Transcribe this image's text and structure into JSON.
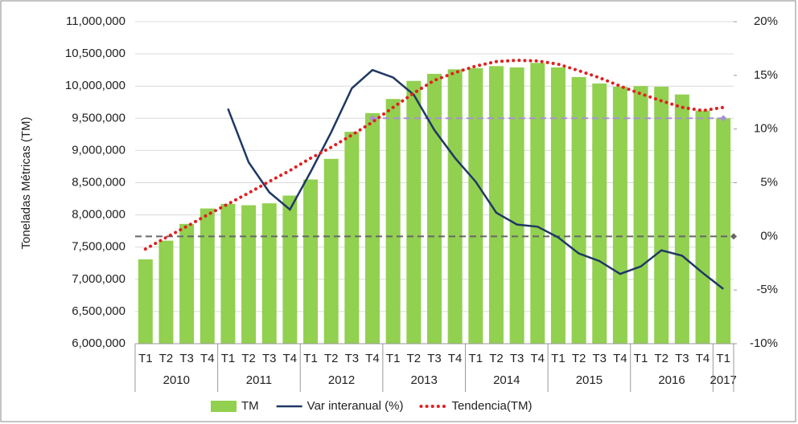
{
  "chart_data": {
    "type": "bar",
    "y_axis_label": "Toneladas Métricas (TM)",
    "categories": [
      "T1",
      "T2",
      "T3",
      "T4",
      "T1",
      "T2",
      "T3",
      "T4",
      "T1",
      "T2",
      "T3",
      "T4",
      "T1",
      "T2",
      "T3",
      "T4",
      "T1",
      "T2",
      "T3",
      "T4",
      "T1",
      "T2",
      "T3",
      "T4",
      "T1",
      "T2",
      "T3",
      "T4",
      "T1"
    ],
    "groups": [
      {
        "label": "2010",
        "span": 4
      },
      {
        "label": "2011",
        "span": 4
      },
      {
        "label": "2012",
        "span": 4
      },
      {
        "label": "2013",
        "span": 4
      },
      {
        "label": "2014",
        "span": 4
      },
      {
        "label": "2015",
        "span": 4
      },
      {
        "label": "2016",
        "span": 4
      },
      {
        "label": "2017",
        "span": 1
      }
    ],
    "series": [
      {
        "name": "TM",
        "type": "bar",
        "color": "#92d050",
        "values": [
          7310000,
          7600000,
          7860000,
          8100000,
          8170000,
          8150000,
          8180000,
          8300000,
          8550000,
          8870000,
          9290000,
          9580000,
          9800000,
          10080000,
          10190000,
          10260000,
          10280000,
          10310000,
          10290000,
          10360000,
          10290000,
          10140000,
          10040000,
          9990000,
          10000000,
          9990000,
          9870000,
          9620000,
          9500000
        ]
      },
      {
        "name": "Var interanual (%)",
        "type": "line",
        "axis": "y2",
        "color": "#1f3864",
        "values": [
          null,
          null,
          null,
          null,
          11.9,
          6.9,
          4.1,
          2.5,
          6.0,
          9.7,
          13.8,
          15.5,
          14.8,
          13.2,
          9.9,
          7.3,
          5.1,
          2.2,
          1.1,
          0.9,
          -0.1,
          -1.6,
          -2.3,
          -3.5,
          -2.8,
          -1.3,
          -1.8,
          -3.4,
          -4.9
        ]
      },
      {
        "name": "Tendencia(TM)",
        "type": "dotted",
        "color": "#e02020",
        "values": [
          7470000,
          7650000,
          7820000,
          8000000,
          8170000,
          8340000,
          8520000,
          8690000,
          8880000,
          9050000,
          9240000,
          9440000,
          9670000,
          9890000,
          10090000,
          10210000,
          10310000,
          10380000,
          10400000,
          10390000,
          10340000,
          10240000,
          10130000,
          10000000,
          9880000,
          9770000,
          9670000,
          9620000,
          9670000
        ]
      }
    ],
    "reference_lines": [
      {
        "axis": "y2",
        "value": 0,
        "color": "#666666"
      },
      {
        "axis": "y",
        "value": 9500000,
        "color": "#a98fd6",
        "from_index": 11
      }
    ],
    "ylim": [
      6000000,
      11000000
    ],
    "yticks": [
      {
        "value": 6000000,
        "label": "6,000,000"
      },
      {
        "value": 6500000,
        "label": "6,500,000"
      },
      {
        "value": 7000000,
        "label": "7,000,000"
      },
      {
        "value": 7500000,
        "label": "7,500,000"
      },
      {
        "value": 8000000,
        "label": "8,000,000"
      },
      {
        "value": 8500000,
        "label": "8,500,000"
      },
      {
        "value": 9000000,
        "label": "9,000,000"
      },
      {
        "value": 9500000,
        "label": "9,500,000"
      },
      {
        "value": 10000000,
        "label": "10,000,000"
      },
      {
        "value": 10500000,
        "label": "10,500,000"
      },
      {
        "value": 11000000,
        "label": "11,000,000"
      }
    ],
    "y2lim": [
      -10,
      20
    ],
    "y2ticks": [
      {
        "value": -10,
        "label": "-10%"
      },
      {
        "value": -5,
        "label": "-5%"
      },
      {
        "value": 0,
        "label": "0%"
      },
      {
        "value": 5,
        "label": "5%"
      },
      {
        "value": 10,
        "label": "10%"
      },
      {
        "value": 15,
        "label": "15%"
      },
      {
        "value": 20,
        "label": "20%"
      }
    ],
    "grid": true
  }
}
